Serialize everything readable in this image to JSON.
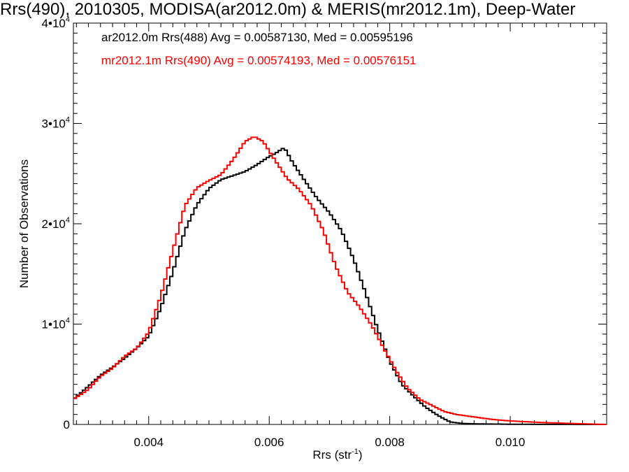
{
  "chart_data": {
    "type": "line",
    "title": "Rrs(490), 2010305, MODISA(ar2012.0m) & MERIS(mr2012.1m), Deep-Water",
    "xlabel_main": "Rrs (str",
    "xlabel_sup": "-1",
    "xlabel_end": ")",
    "ylabel": "Number of Observations",
    "xlim": [
      0.00275,
      0.0116
    ],
    "ylim": [
      0,
      40000
    ],
    "x_ticks": [
      {
        "value": 0.004,
        "label": "0.004"
      },
      {
        "value": 0.006,
        "label": "0.006"
      },
      {
        "value": 0.008,
        "label": "0.008"
      },
      {
        "value": 0.01,
        "label": "0.010"
      }
    ],
    "y_ticks": [
      {
        "value": 0,
        "base": "0",
        "exp": ""
      },
      {
        "value": 10000,
        "base": "1•10",
        "exp": "4"
      },
      {
        "value": 20000,
        "base": "2•10",
        "exp": "4"
      },
      {
        "value": 30000,
        "base": "3•10",
        "exp": "4"
      },
      {
        "value": 40000,
        "base": "4•10",
        "exp": "4"
      }
    ],
    "legend": [
      {
        "text": "ar2012.0m Rrs(488) Avg = 0.00587130, Med = 0.00595196",
        "color": "#000000"
      },
      {
        "text": "mr2012.1m Rrs(490) Avg = 0.00574193, Med = 0.00576151",
        "color": "#ff0000"
      }
    ],
    "series": [
      {
        "color": "#000000",
        "x": [
          0.00275,
          0.003,
          0.0032,
          0.0034,
          0.0036,
          0.0038,
          0.004,
          0.0042,
          0.0044,
          0.0046,
          0.0048,
          0.005,
          0.0052,
          0.0054,
          0.0056,
          0.0058,
          0.006,
          0.0061,
          0.00625,
          0.0064,
          0.0066,
          0.0068,
          0.007,
          0.0072,
          0.0074,
          0.0076,
          0.0078,
          0.008,
          0.0082,
          0.0084,
          0.0086,
          0.0088,
          0.009,
          0.0092,
          0.0095,
          0.01,
          0.0105,
          0.011,
          0.0116
        ],
        "y": [
          2500,
          3800,
          4900,
          5700,
          6600,
          7600,
          8800,
          11600,
          15200,
          19300,
          21900,
          23500,
          24400,
          24800,
          25200,
          25900,
          26700,
          27000,
          27600,
          26000,
          24200,
          22500,
          21100,
          19300,
          16500,
          13100,
          9500,
          6300,
          4000,
          2800,
          1700,
          900,
          250,
          100,
          50,
          20,
          10,
          5,
          0
        ]
      },
      {
        "color": "#ff0000",
        "x": [
          0.00275,
          0.003,
          0.0032,
          0.0034,
          0.0036,
          0.0038,
          0.004,
          0.0042,
          0.0044,
          0.0046,
          0.0048,
          0.005,
          0.0052,
          0.0054,
          0.0056,
          0.00575,
          0.0059,
          0.0061,
          0.0063,
          0.0065,
          0.0067,
          0.0069,
          0.0071,
          0.0073,
          0.0075,
          0.0077,
          0.0079,
          0.0081,
          0.0083,
          0.0085,
          0.0087,
          0.0089,
          0.0091,
          0.0094,
          0.0097,
          0.01,
          0.0105,
          0.011,
          0.0116
        ],
        "y": [
          2500,
          3500,
          4800,
          5600,
          6800,
          7600,
          9200,
          12800,
          17300,
          21800,
          23600,
          24300,
          24900,
          26400,
          28200,
          28700,
          28200,
          26300,
          24500,
          23400,
          21800,
          19300,
          15800,
          13200,
          11700,
          9900,
          7600,
          5400,
          3600,
          2500,
          1900,
          1300,
          1000,
          750,
          500,
          350,
          200,
          100,
          0
        ]
      }
    ]
  }
}
